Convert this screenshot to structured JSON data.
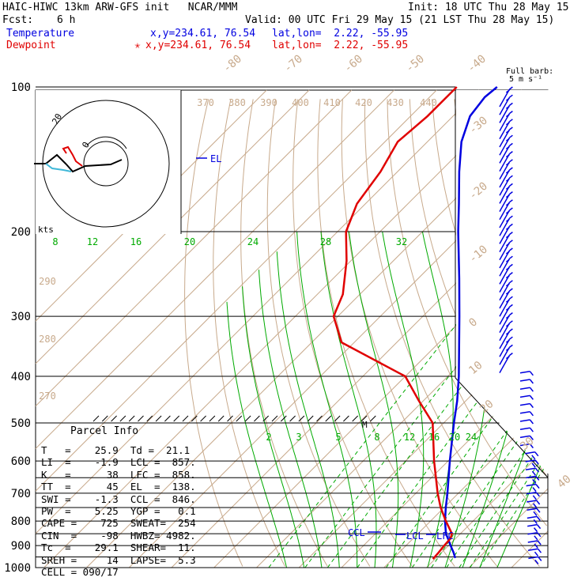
{
  "header": {
    "model_line": "HAIC-HIWC 13km ARW-GFS init   NCAR/MMM",
    "init_line": "Init: 18 UTC Thu 28 May 15",
    "fcst_label": "Fcst:",
    "fcst_value": "6 h",
    "valid_line": "Valid: 00 UTC Fri 29 May 15 (21 LST Thu 28 May 15)",
    "temp_label": "Temperature",
    "temp_xy": "x,y=234.61, 76.54",
    "temp_latlon": "lat,lon=  2.22, -55.95",
    "dew_label": "Dewpoint",
    "dew_marker": "✭",
    "dew_xy": "x,y=234.61, 76.54",
    "dew_latlon": "lat,lon=  2.22, -55.95",
    "barb_label_1": "Full barb:",
    "barb_label_2": "5 m s⁻¹"
  },
  "colors": {
    "temperature": "#0000e0",
    "dewpoint": "#e00000",
    "isotherm": "#c8aa8c",
    "mixing_ratio": "#00aa00",
    "isobar": "#000000"
  },
  "chart_data": {
    "type": "line",
    "title": "HAIC-HIWC 13km ARW-GFS init   NCAR/MMM",
    "ylabel": "",
    "xlabel": "",
    "y_scale": "log-pressure",
    "y_ticks": [
      "100",
      "200",
      "300",
      "400",
      "500",
      "600",
      "700",
      "800",
      "900",
      "1000"
    ],
    "isotherm_labels": [
      "-80",
      "-70",
      "-60",
      "-50",
      "-40",
      "-30",
      "-20",
      "-10",
      "0",
      "10",
      "20",
      "30",
      "40"
    ],
    "theta_labels": [
      "370",
      "380",
      "390",
      "400",
      "410",
      "420",
      "430",
      "440",
      "290",
      "280",
      "270"
    ],
    "mixing_ratio_labels_upper": [
      "8",
      "12",
      "16",
      "20",
      "24",
      "28",
      "32"
    ],
    "mixing_ratio_labels_lower": [
      "2",
      "3",
      "5",
      "8",
      "12",
      "16",
      "20",
      "24"
    ],
    "series": [
      {
        "name": "Temperature",
        "pressure_hpa": [
          955,
          930,
          900,
          870,
          850,
          800,
          750,
          700,
          600,
          500,
          450,
          400,
          300,
          250,
          200,
          175,
          150,
          130,
          115,
          105,
          100
        ],
        "values": [
          24.5,
          22.8,
          20.5,
          18.2,
          16.6,
          13.4,
          10.4,
          7.4,
          0.4,
          -7.6,
          -12.0,
          -17.4,
          -31.4,
          -40.4,
          -51.6,
          -58.0,
          -65.5,
          -72.0,
          -76.0,
          -77.0,
          -76.5
        ]
      },
      {
        "name": "Dewpoint",
        "pressure_hpa": [
          960,
          930,
          900,
          870,
          850,
          800,
          750,
          700,
          600,
          500,
          450,
          400,
          340,
          300,
          270,
          230,
          200,
          175,
          150,
          130,
          115,
          100
        ],
        "values": [
          19.5,
          19.3,
          19.0,
          18.8,
          18.0,
          13.6,
          9.2,
          5.1,
          -3.3,
          -12.6,
          -21.0,
          -30.0,
          -53.0,
          -61.0,
          -64.0,
          -71.0,
          -78.0,
          -82.0,
          -84.0,
          -87.0,
          -86.0,
          -86.0
        ]
      }
    ],
    "annotations": [
      "EL",
      "CCL",
      "LCL",
      "LFC",
      "M"
    ],
    "hodograph_labels": [
      "20",
      "0",
      "kts"
    ],
    "hodograph_rings_kts": [
      10,
      20,
      30
    ]
  },
  "parcel_info": {
    "title": "Parcel Info",
    "rows": [
      "T   =    25.9  Td =  21.1",
      "LI  =    -1.9  LCL =  857.",
      "K   =      38  LFC =  858.",
      "TT  =      45  EL  =  138.",
      "SWI =    -1.3  CCL =  846.",
      "PW  =    5.25  YGP =   0.1",
      "CAPE =    725  SWEAT=  254",
      "CIN  =    -98  HWBZ= 4982.",
      "Tc  =    29.1  SHEAR=  11.",
      "SREH =     14  LAPSE=  5.3",
      "CELL = 090/17"
    ]
  }
}
